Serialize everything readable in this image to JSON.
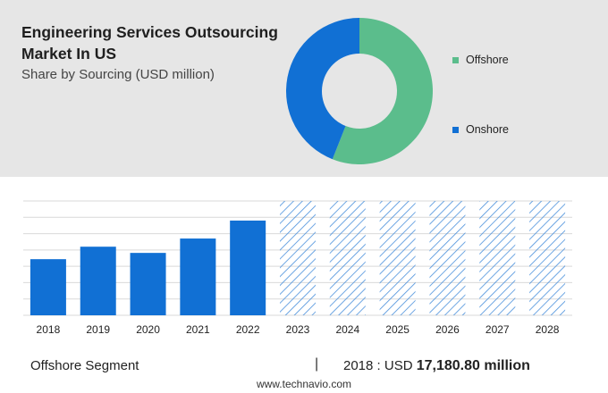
{
  "title": "Engineering Services Outsourcing Market In US",
  "subtitle": "Share by Sourcing (USD million)",
  "donut": {
    "segments": [
      {
        "name": "Offshore",
        "share": 0.56,
        "color": "#5bbd8c"
      },
      {
        "name": "Onshore",
        "share": 0.44,
        "color": "#1170d4"
      }
    ]
  },
  "legend": {
    "offshore_label": "Offshore",
    "onshore_label": "Onshore"
  },
  "chart_data": {
    "type": "bar",
    "categories": [
      "2018",
      "2019",
      "2020",
      "2021",
      "2022",
      "2023",
      "2024",
      "2025",
      "2026",
      "2027",
      "2028"
    ],
    "values": [
      17180.8,
      21000,
      19100,
      23500,
      29000,
      null,
      null,
      null,
      null,
      null,
      null
    ],
    "forecast_years": [
      "2023",
      "2024",
      "2025",
      "2026",
      "2027",
      "2028"
    ],
    "bar_color": "#1170d4",
    "hatch_color": "#4a90dc",
    "grid": true,
    "ylim": [
      0,
      35000
    ],
    "xlabel": "",
    "ylabel": ""
  },
  "footer": {
    "segment_label": "Offshore Segment",
    "divider": "|",
    "year_prefix": "2018 : USD",
    "value": "17,180.80 million"
  },
  "watermark": "www.technavio.com"
}
